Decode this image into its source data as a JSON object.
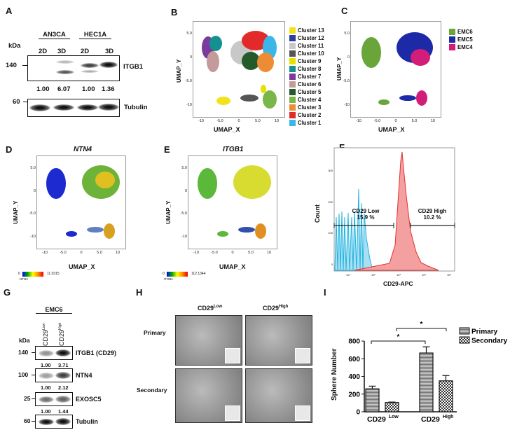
{
  "panels": {
    "A": "A",
    "B": "B",
    "C": "C",
    "D": "D",
    "E": "E",
    "F": "F",
    "G": "G",
    "H": "H",
    "I": "I"
  },
  "panel_a": {
    "groups": [
      "AN3CA",
      "HEC1A"
    ],
    "lanes": [
      "2D",
      "3D",
      "2D",
      "3D"
    ],
    "kda": "kDa",
    "markers": [
      "140",
      "60"
    ],
    "proteins": [
      "ITGB1",
      "Tubulin"
    ],
    "ratios": [
      "1.00",
      "6.07",
      "1.00",
      "1.36"
    ]
  },
  "umap": {
    "xlabel": "UMAP_X",
    "ylabel": "UMAP_Y",
    "xticks": [
      "-10",
      "-5.0",
      "0",
      "5.0",
      "10"
    ],
    "yticks": [
      "5.0",
      "0",
      "-5.0",
      "-10"
    ]
  },
  "panel_b": {
    "legend": [
      {
        "label": "Cluster 13",
        "color": "#f2e21c"
      },
      {
        "label": "Cluster 12",
        "color": "#2b3f9e"
      },
      {
        "label": "Cluster 11",
        "color": "#c8c8c8"
      },
      {
        "label": "Cluster 10",
        "color": "#555555"
      },
      {
        "label": "Cluster 9",
        "color": "#e8e000"
      },
      {
        "label": "Cluster 8",
        "color": "#13918f"
      },
      {
        "label": "Cluster 7",
        "color": "#7b3a9e"
      },
      {
        "label": "Cluster 6",
        "color": "#c49a9a"
      },
      {
        "label": "Cluster 5",
        "color": "#235c2a"
      },
      {
        "label": "Cluster 4",
        "color": "#7ab648"
      },
      {
        "label": "Cluster 3",
        "color": "#ee8c35"
      },
      {
        "label": "Cluster 2",
        "color": "#e22a2a"
      },
      {
        "label": "Cluster 1",
        "color": "#3ab6e8"
      }
    ]
  },
  "panel_c": {
    "legend": [
      {
        "label": "EMC6",
        "color": "#6aa53a"
      },
      {
        "label": "EMC5",
        "color": "#1c2aa8"
      },
      {
        "label": "EMC4",
        "color": "#d21d7a"
      }
    ]
  },
  "panel_d": {
    "title": "NTN4",
    "cbar_min": "0",
    "cbar_max": "11.0315",
    "cbar_label": "NTN4"
  },
  "panel_e": {
    "title": "ITGB1",
    "cbar_min": "0",
    "cbar_max": "112.1344",
    "cbar_label": "ITGB1"
  },
  "panel_f": {
    "ylabel": "Count",
    "xlabel": "CD29-APC",
    "yticks": [
      "0",
      "100",
      "200",
      "300"
    ],
    "xticks": [
      "10¹",
      "10²",
      "10³",
      "10⁴",
      "10⁵"
    ],
    "gate_low": "CD29 Low",
    "gate_low_pct": "15.9 %",
    "gate_high": "CD29 High",
    "gate_high_pct": "10.2 %",
    "colors": {
      "control": "#22b4e0",
      "stained": "#f08080"
    }
  },
  "panel_g": {
    "group": "EMC6",
    "lanes": [
      {
        "base": "CD29",
        "sup": "Low"
      },
      {
        "base": "CD29",
        "sup": "High"
      }
    ],
    "kda": "kDa",
    "blots": [
      {
        "marker": "140",
        "protein": "ITGB1 (CD29)",
        "ratios": [
          "1.00",
          "3.71"
        ]
      },
      {
        "marker": "100",
        "protein": "NTN4",
        "ratios": [
          "1.00",
          "2.12"
        ]
      },
      {
        "marker": "25",
        "protein": "EXOSC5",
        "ratios": [
          "1.00",
          "1.44"
        ]
      },
      {
        "marker": "60",
        "protein": "Tubulin"
      }
    ]
  },
  "panel_h": {
    "columns": [
      {
        "base": "CD29",
        "sup": "Low"
      },
      {
        "base": "CD29",
        "sup": "High"
      }
    ],
    "rows": [
      "Primary",
      "Secondary"
    ]
  },
  "chart_data": {
    "type": "bar",
    "ylabel": "Sphere Number",
    "ylim": [
      0,
      800
    ],
    "yticks": [
      "0",
      "200",
      "400",
      "600",
      "800"
    ],
    "categories": [
      {
        "base": "CD29",
        "sup": "Low"
      },
      {
        "base": "CD29",
        "sup": "High"
      }
    ],
    "series": [
      {
        "name": "Primary",
        "values": [
          260,
          665
        ],
        "errors": [
          30,
          70
        ]
      },
      {
        "name": "Secondary",
        "values": [
          105,
          350
        ],
        "errors": [
          5,
          60
        ]
      }
    ],
    "significance": "*",
    "legend": "top-right"
  }
}
